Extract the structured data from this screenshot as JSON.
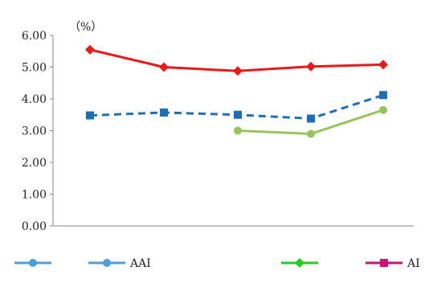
{
  "chart_data": {
    "type": "line",
    "unit_label": "（%）",
    "ylim": [
      0,
      6
    ],
    "y_ticks": [
      "0.00",
      "1.00",
      "2.00",
      "3.00",
      "4.00",
      "5.00",
      "6.00"
    ],
    "categories": [
      "",
      "",
      "",
      "",
      ""
    ],
    "series": [
      {
        "name": "",
        "color": "#e8191c",
        "style": "solid",
        "marker": "diamond",
        "values": [
          5.55,
          5.0,
          4.88,
          5.02,
          5.08
        ]
      },
      {
        "name": "",
        "color": "#1f6fb8",
        "style": "dashed",
        "marker": "square",
        "values": [
          3.48,
          3.57,
          3.5,
          3.38,
          4.12
        ]
      },
      {
        "name": "",
        "color": "#97c45c",
        "style": "solid",
        "marker": "circle",
        "values": [
          null,
          null,
          3.0,
          2.9,
          3.65
        ]
      }
    ],
    "legend": [
      {
        "label": "",
        "color": "#4a9fd6",
        "marker": "circle"
      },
      {
        "label": "AAI",
        "color": "#4a9fd6",
        "marker": "circle"
      },
      {
        "label": "",
        "color": "#22cc22",
        "marker": "diamond"
      },
      {
        "label": "AI",
        "color": "#cc1177",
        "marker": "square"
      }
    ],
    "legend_position": "bottom",
    "grid": false
  }
}
